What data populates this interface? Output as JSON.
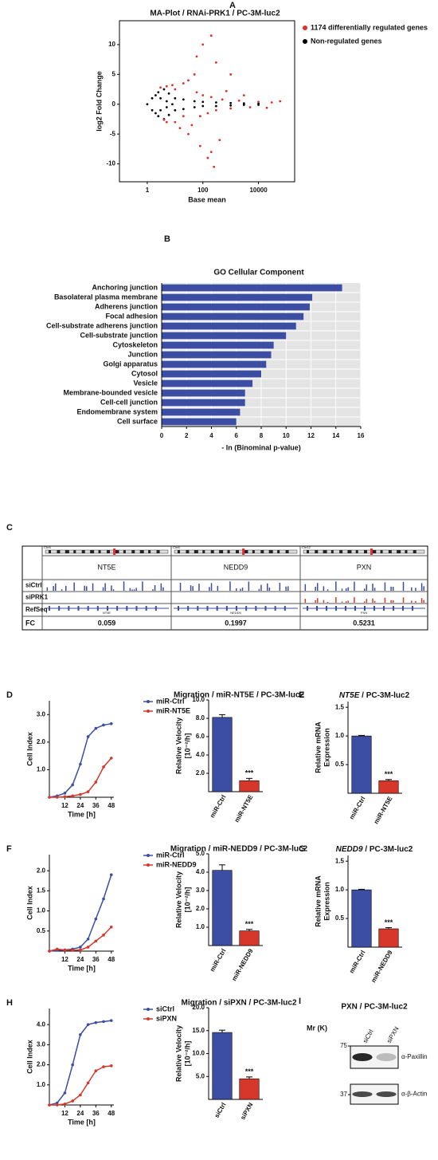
{
  "chart_data": [
    {
      "type": "scatter",
      "panel": "A",
      "title": "MA-Plot / RNAi-PRK1 / PC-3M-luc2",
      "x_label": "Base mean",
      "y_label": "log2 Fold Change",
      "xscale": "log",
      "xlim": [
        0.1,
        200000
      ],
      "ylim": [
        -13,
        14
      ],
      "xticks": [
        1,
        100,
        10000
      ],
      "yticks": [
        -10,
        -5,
        0,
        5,
        10
      ],
      "legend": "right",
      "series": [
        {
          "name": "1174 differentially regulated genes",
          "color": "#e0302a",
          "x": [
            5,
            5,
            10,
            10,
            20,
            20,
            30,
            40,
            60,
            80,
            100,
            150,
            200,
            300,
            500,
            1000,
            2000,
            5000,
            10000,
            30000,
            100,
            200,
            60,
            300,
            30,
            80,
            150,
            250,
            400,
            1000,
            50,
            200,
            3,
            4,
            8,
            15,
            700,
            3000,
            20000,
            60000
          ],
          "y": [
            3,
            -3,
            2.5,
            -3,
            3.5,
            -2,
            4,
            -3.5,
            2,
            -2,
            1.5,
            -1.5,
            1.2,
            -1,
            0.8,
            -0.7,
            0.6,
            -0.5,
            0.4,
            0.3,
            10,
            11.5,
            8,
            7,
            -5,
            -7,
            -9,
            -10.5,
            -6,
            5,
            5,
            -8,
            2.8,
            -2.6,
            3.2,
            -4,
            2.2,
            1.5,
            -0.6,
            0.5
          ]
        },
        {
          "name": "Non-regulated genes",
          "color": "#000000",
          "x": [
            1,
            1.5,
            1.5,
            2,
            2,
            2.5,
            2.5,
            3,
            3,
            4,
            4,
            5,
            5,
            6,
            6,
            8,
            10,
            10,
            20,
            20,
            50,
            50,
            100,
            100,
            300,
            300,
            1000,
            1000,
            3000,
            3000,
            10000,
            10000
          ],
          "y": [
            0,
            1,
            -1,
            1.5,
            -1.5,
            2,
            -2,
            1,
            -1,
            2.5,
            -2.5,
            0.5,
            -0.5,
            1.8,
            -1.8,
            0,
            1,
            -1,
            0.8,
            -0.8,
            0.5,
            -0.5,
            0.4,
            -0.3,
            0.3,
            -0.3,
            0.2,
            -0.2,
            0.15,
            -0.1,
            0.1,
            -0.1
          ]
        }
      ]
    },
    {
      "type": "hbar",
      "panel": "B",
      "title": "GO Cellular Component",
      "x_label": "- ln (Binominal p-value)",
      "categories": [
        "Anchoring junction",
        "Basolateral plasma membrane",
        "Adherens junction",
        "Focal adhesion",
        "Cell-substrate adherens junction",
        "Cell-substrate junction",
        "Cytoskeleton",
        "Junction",
        "Golgi apparatus",
        "Cytosol",
        "Vesicle",
        "Membrane-bounded vesicle",
        "Cell-cell junction",
        "Endomembrane system",
        "Cell surface"
      ],
      "values": [
        14.5,
        12.1,
        11.9,
        11.4,
        10.8,
        10.0,
        9.0,
        8.8,
        8.4,
        8.0,
        7.3,
        6.7,
        6.7,
        6.3,
        6.0
      ],
      "color": "#3b4ea3",
      "xlim": [
        0,
        16
      ],
      "xticks": [
        0,
        2,
        4,
        6,
        8,
        10,
        12,
        14,
        16
      ],
      "grid": true
    },
    {
      "type": "browser",
      "panel": "C",
      "chromosomes": [
        "Chr6",
        "Chr6",
        "Chr12"
      ],
      "genes": [
        "NT5E",
        "NEDD9",
        "PXN"
      ],
      "tracks": [
        "siCtrl",
        "siPRK1",
        "RefSeq"
      ],
      "fc_label": "FC",
      "fc": [
        0.059,
        0.1997,
        0.5231
      ]
    },
    {
      "type": "line",
      "panel": "D",
      "title": "Migration / miR-NT5E / PC-3M-luc2",
      "x_label": "Time [h]",
      "y_label": "Cell Index",
      "x": [
        0,
        6,
        12,
        18,
        24,
        30,
        36,
        42,
        48
      ],
      "xlim": [
        0,
        50
      ],
      "xticks": [
        12,
        24,
        36,
        48
      ],
      "ylim": [
        0,
        3.5
      ],
      "yticks": [
        {
          "value": 1,
          "label": "1.0"
        },
        {
          "value": 2,
          "label": "2.0"
        },
        {
          "value": 3,
          "label": "3.0"
        }
      ],
      "legend": "right",
      "series": [
        {
          "name": "miR-Ctrl",
          "color": "#3b4ea3",
          "values": [
            0,
            0.05,
            0.15,
            0.45,
            1.2,
            2.2,
            2.5,
            2.62,
            2.67
          ]
        },
        {
          "name": "miR-NT5E",
          "color": "#d7372b",
          "values": [
            0,
            0,
            0.02,
            0.05,
            0.1,
            0.2,
            0.55,
            1.1,
            1.42
          ]
        }
      ]
    },
    {
      "type": "bar",
      "y_label": [
        "Relative Velocity",
        "[10⁻²/h]"
      ],
      "categories": [
        "miR-Ctrl",
        "miR-NT5E"
      ],
      "values": [
        8.1,
        1.2
      ],
      "errors": [
        0.3,
        0.25
      ],
      "colors": [
        "#3b4ea3",
        "#d7372b"
      ],
      "ylim": [
        0,
        10
      ],
      "yticks": [
        {
          "value": 2,
          "label": "2.0"
        },
        {
          "value": 4,
          "label": "4.0"
        },
        {
          "value": 6,
          "label": "6.0"
        },
        {
          "value": 8,
          "label": "8.0"
        },
        {
          "value": 10,
          "label": "10.0"
        }
      ],
      "annotations": [
        {
          "category": "miR-NT5E",
          "text": "***"
        }
      ]
    },
    {
      "type": "bar",
      "panel": "E",
      "title": [
        "NT5E",
        " / PC-3M-luc2"
      ],
      "y_label": [
        "Relative mRNA",
        "Expression"
      ],
      "categories": [
        "miR-Ctrl",
        "miR-NT5E"
      ],
      "values": [
        1,
        0.22
      ],
      "errors": [
        0.01,
        0.02
      ],
      "colors": [
        "#3b4ea3",
        "#d7372b"
      ],
      "ylim": [
        0,
        1.6
      ],
      "yticks": [
        0.5,
        {
          "value": 1,
          "label": "1.0"
        },
        1.5
      ],
      "annotations": [
        {
          "category": "miR-NT5E",
          "text": "***"
        }
      ]
    },
    {
      "type": "line",
      "panel": "F",
      "title": "Migration / miR-NEDD9 / PC-3M-luc2",
      "x_label": "Time [h]",
      "y_label": "Cell Index",
      "x": [
        0,
        6,
        12,
        18,
        24,
        30,
        36,
        42,
        48
      ],
      "xlim": [
        0,
        50
      ],
      "xticks": [
        12,
        24,
        36,
        48
      ],
      "ylim": [
        0,
        2.4
      ],
      "yticks": [
        0.5,
        {
          "value": 1,
          "label": "1.0"
        },
        1.5,
        {
          "value": 2,
          "label": "2.0"
        }
      ],
      "legend": "right",
      "series": [
        {
          "name": "miR-Ctrl",
          "color": "#3b4ea3",
          "values": [
            0,
            0.02,
            0.03,
            0.05,
            0.1,
            0.3,
            0.8,
            1.3,
            1.9
          ]
        },
        {
          "name": "miR-NEDD9",
          "color": "#d7372b",
          "values": [
            0,
            0.05,
            0.03,
            0.02,
            0.03,
            0.1,
            0.25,
            0.4,
            0.6
          ]
        }
      ]
    },
    {
      "type": "bar",
      "y_label": [
        "Relative Velocity",
        "[10⁻²/h]"
      ],
      "categories": [
        "miR-Ctrl",
        "miR-NEDD9"
      ],
      "values": [
        4.1,
        0.8
      ],
      "errors": [
        0.3,
        0.08
      ],
      "colors": [
        "#3b4ea3",
        "#d7372b"
      ],
      "ylim": [
        0,
        5
      ],
      "yticks": [
        {
          "value": 1,
          "label": "1.0"
        },
        {
          "value": 2,
          "label": "2.0"
        },
        {
          "value": 3,
          "label": "3.0"
        },
        {
          "value": 4,
          "label": "4.0"
        },
        {
          "value": 5,
          "label": "5.0"
        }
      ],
      "annotations": [
        {
          "category": "miR-NEDD9",
          "text": "***"
        }
      ]
    },
    {
      "type": "bar",
      "panel": "G",
      "title": [
        "NEDD9",
        " / PC-3M-luc2"
      ],
      "y_label": [
        "Relative mRNA",
        "Expression"
      ],
      "categories": [
        "miR-Ctrl",
        "miR-NEDD9"
      ],
      "values": [
        1,
        0.32
      ],
      "errors": [
        0.01,
        0.02
      ],
      "colors": [
        "#3b4ea3",
        "#d7372b"
      ],
      "ylim": [
        0,
        1.6
      ],
      "yticks": [
        0.5,
        {
          "value": 1,
          "label": "1.0"
        },
        1.5
      ],
      "annotations": [
        {
          "category": "miR-NEDD9",
          "text": "***"
        }
      ]
    },
    {
      "type": "line",
      "panel": "H",
      "title": "Migration / siPXN / PC-3M-luc2",
      "x_label": "Time [h]",
      "y_label": "Cell Index",
      "x": [
        0,
        6,
        12,
        18,
        24,
        30,
        36,
        42,
        48
      ],
      "xlim": [
        0,
        50
      ],
      "xticks": [
        12,
        24,
        36,
        48
      ],
      "ylim": [
        0,
        4.8
      ],
      "yticks": [
        {
          "value": 1,
          "label": "1.0"
        },
        {
          "value": 2,
          "label": "2.0"
        },
        {
          "value": 3,
          "label": "3.0"
        },
        {
          "value": 4,
          "label": "4.0"
        }
      ],
      "legend": "right",
      "series": [
        {
          "name": "siCtrl",
          "color": "#3b4ea3",
          "values": [
            0,
            0.1,
            0.6,
            2.0,
            3.5,
            4.0,
            4.1,
            4.15,
            4.2
          ]
        },
        {
          "name": "siPXN",
          "color": "#d7372b",
          "values": [
            0,
            0,
            0.05,
            0.2,
            0.5,
            1.1,
            1.7,
            1.9,
            1.95
          ]
        }
      ]
    },
    {
      "type": "bar",
      "y_label": [
        "Relative Velocity",
        "[10⁻²/h]"
      ],
      "categories": [
        "siCtrl",
        "siPXN"
      ],
      "values": [
        14.6,
        4.5
      ],
      "errors": [
        0.5,
        0.4
      ],
      "colors": [
        "#3b4ea3",
        "#d7372b"
      ],
      "ylim": [
        0,
        20
      ],
      "yticks": [
        {
          "value": 5,
          "label": "5.0"
        },
        {
          "value": 10,
          "label": "10.0"
        },
        {
          "value": 15,
          "label": "15.0"
        },
        {
          "value": 20,
          "label": "20.0"
        }
      ],
      "annotations": [
        {
          "category": "siPXN",
          "text": "***"
        }
      ]
    },
    {
      "type": "blot",
      "panel": "I",
      "title": "PXN / PC-3M-luc2",
      "mr_label": "Mr (K)",
      "markers": [
        75,
        37
      ],
      "lanes": [
        "siCtrl",
        "siPXN"
      ],
      "antibodies": [
        "α-Paxillin",
        "α-β-Actin"
      ]
    }
  ]
}
